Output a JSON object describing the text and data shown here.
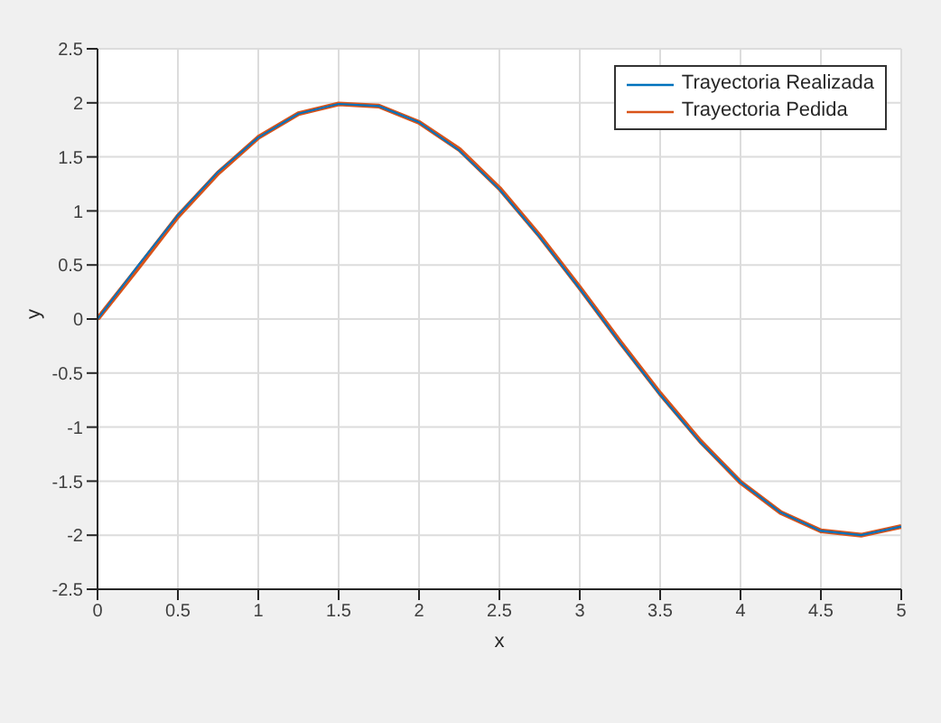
{
  "chart_data": {
    "type": "line",
    "xlabel": "x",
    "ylabel": "y",
    "x": [
      0,
      0.25,
      0.5,
      0.75,
      1,
      1.25,
      1.5,
      1.75,
      2,
      2.25,
      2.5,
      2.75,
      3,
      3.25,
      3.5,
      3.75,
      4,
      4.25,
      4.5,
      4.75,
      5
    ],
    "series": [
      {
        "name": "Trayectoria Realizada",
        "color": "#0072bd",
        "values": [
          0,
          0.49,
          0.96,
          1.36,
          1.68,
          1.9,
          1.99,
          1.97,
          1.82,
          1.56,
          1.2,
          0.76,
          0.28,
          -0.22,
          -0.7,
          -1.14,
          -1.51,
          -1.79,
          -1.96,
          -2,
          -1.92
        ]
      },
      {
        "name": "Trayectoria Pedida",
        "color": "#d95319",
        "values": [
          0,
          0.47,
          0.95,
          1.35,
          1.68,
          1.9,
          1.99,
          1.97,
          1.82,
          1.57,
          1.21,
          0.77,
          0.29,
          -0.21,
          -0.69,
          -1.13,
          -1.51,
          -1.79,
          -1.96,
          -2,
          -1.92
        ]
      }
    ],
    "xlim": [
      0,
      5
    ],
    "xticks": [
      0,
      0.5,
      1,
      1.5,
      2,
      2.5,
      3,
      3.5,
      4,
      4.5,
      5
    ],
    "ylim": [
      -2.5,
      2.5
    ],
    "yticks": [
      -2.5,
      -2,
      -1.5,
      -1,
      -0.5,
      0,
      0.5,
      1,
      1.5,
      2,
      2.5
    ],
    "grid": true,
    "legend": "top right"
  }
}
